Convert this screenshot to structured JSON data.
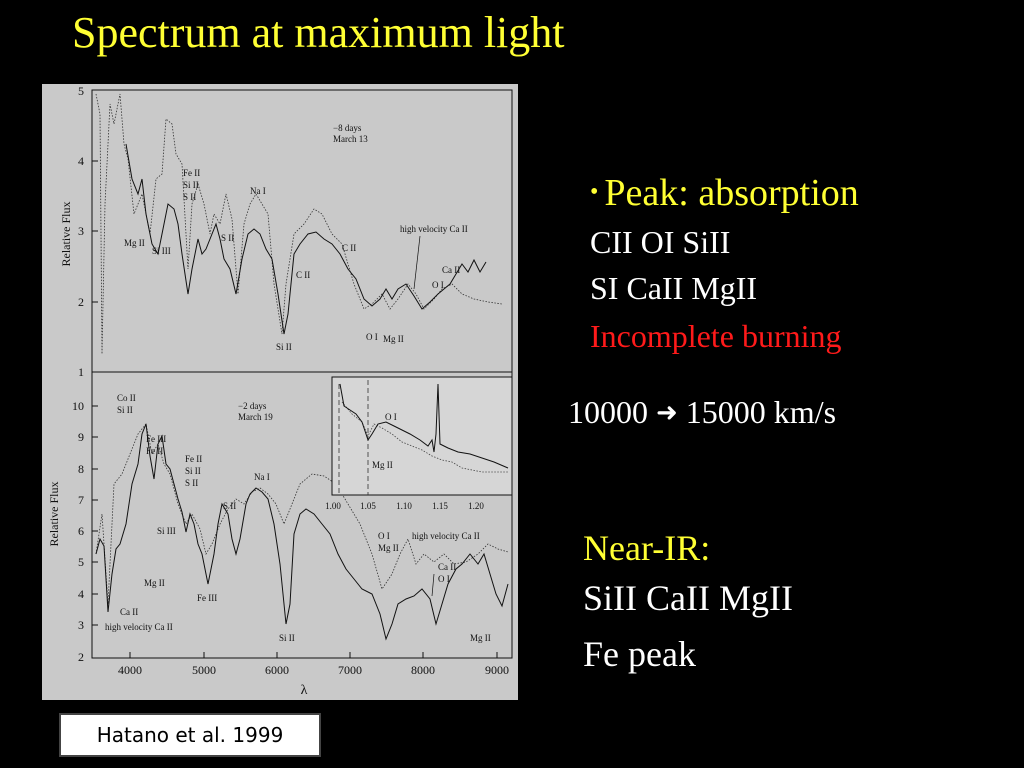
{
  "slide": {
    "title": "Spectrum at maximum light",
    "credit": "Hatano et al. 1999"
  },
  "bullets": {
    "peak_heading": "Peak: absorption",
    "peak_line1": "CII OI  SiII",
    "peak_line2": "SI CaII MgII",
    "peak_line3": "Incomplete burning",
    "velocity_from": "10000",
    "velocity_to": "15000 km/s",
    "near_ir_heading": "Near-IR:",
    "near_ir_line1": "SiII CaII MgII",
    "near_ir_line2": "Fe peak"
  },
  "icons": {
    "arrow": "right-arrow-icon",
    "bullet": "bullet-icon"
  },
  "colors": {
    "background": "#000000",
    "title": "#ffff33",
    "emphasis": "#ff1a1a",
    "figure_bg": "#c9c9c9"
  },
  "figure": {
    "x_axis_label": "λ",
    "y_axis_label": "Relative Flux",
    "x_ticks": [
      "4000",
      "5000",
      "6000",
      "7000",
      "8000",
      "9000"
    ],
    "top_panel": {
      "epoch": "−8 days",
      "date": "March 13",
      "y_ticks": [
        "1",
        "2",
        "3",
        "4",
        "5"
      ],
      "labels": [
        "Fe II",
        "Si II",
        "S II",
        "Na I",
        "Mg II",
        "Si III",
        "S II",
        "C II",
        "C II",
        "Si II",
        "O I",
        "Mg II",
        "high velocity Ca II",
        "Ca II",
        "O I"
      ]
    },
    "bottom_panel": {
      "epoch": "−2 days",
      "date": "March 19",
      "y_ticks": [
        "2",
        "3",
        "4",
        "5",
        "6",
        "7",
        "8",
        "9",
        "10"
      ],
      "labels": [
        "Co II",
        "Si II",
        "Fe III",
        "Fe II",
        "Fe II",
        "Si II",
        "S II",
        "S II",
        "Na I",
        "Si III",
        "Mg II",
        "Ca II",
        "high velocity Ca II",
        "Fe III",
        "Si II",
        "O I",
        "Mg II",
        "high velocity Ca II",
        "Ca II",
        "O I",
        "Mg II"
      ],
      "inset": {
        "x_ticks": [
          "1.00",
          "1.05",
          "1.10",
          "1.15",
          "1.20"
        ],
        "labels": [
          "O I",
          "Mg II"
        ]
      }
    }
  }
}
